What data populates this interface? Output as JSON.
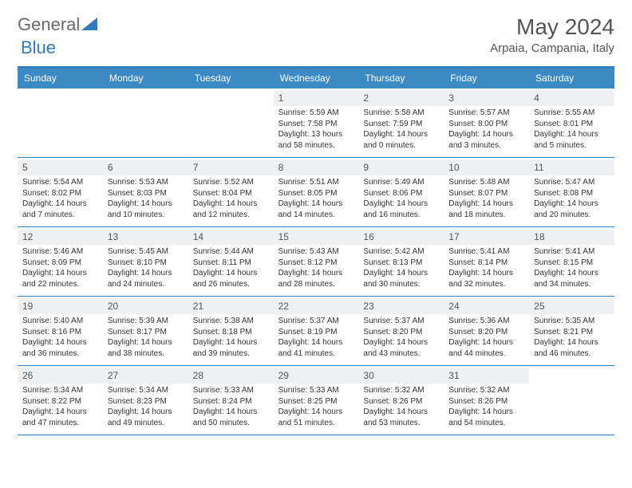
{
  "logo": {
    "text1": "General",
    "text2": "Blue"
  },
  "title": "May 2024",
  "location": "Arpaia, Campania, Italy",
  "weekdays": [
    "Sunday",
    "Monday",
    "Tuesday",
    "Wednesday",
    "Thursday",
    "Friday",
    "Saturday"
  ],
  "colors": {
    "header_bg": "#3b8ac4",
    "border": "#2f7bbf",
    "daynum_bg": "#eef0f1",
    "text": "#333333",
    "logo_gray": "#6a6a6a",
    "logo_blue": "#2f7bbf"
  },
  "weeks": [
    [
      {
        "empty": true
      },
      {
        "empty": true
      },
      {
        "empty": true
      },
      {
        "day": "1",
        "sunrise": "Sunrise: 5:59 AM",
        "sunset": "Sunset: 7:58 PM",
        "daylight1": "Daylight: 13 hours",
        "daylight2": "and 58 minutes."
      },
      {
        "day": "2",
        "sunrise": "Sunrise: 5:58 AM",
        "sunset": "Sunset: 7:59 PM",
        "daylight1": "Daylight: 14 hours",
        "daylight2": "and 0 minutes."
      },
      {
        "day": "3",
        "sunrise": "Sunrise: 5:57 AM",
        "sunset": "Sunset: 8:00 PM",
        "daylight1": "Daylight: 14 hours",
        "daylight2": "and 3 minutes."
      },
      {
        "day": "4",
        "sunrise": "Sunrise: 5:55 AM",
        "sunset": "Sunset: 8:01 PM",
        "daylight1": "Daylight: 14 hours",
        "daylight2": "and 5 minutes."
      }
    ],
    [
      {
        "day": "5",
        "sunrise": "Sunrise: 5:54 AM",
        "sunset": "Sunset: 8:02 PM",
        "daylight1": "Daylight: 14 hours",
        "daylight2": "and 7 minutes."
      },
      {
        "day": "6",
        "sunrise": "Sunrise: 5:53 AM",
        "sunset": "Sunset: 8:03 PM",
        "daylight1": "Daylight: 14 hours",
        "daylight2": "and 10 minutes."
      },
      {
        "day": "7",
        "sunrise": "Sunrise: 5:52 AM",
        "sunset": "Sunset: 8:04 PM",
        "daylight1": "Daylight: 14 hours",
        "daylight2": "and 12 minutes."
      },
      {
        "day": "8",
        "sunrise": "Sunrise: 5:51 AM",
        "sunset": "Sunset: 8:05 PM",
        "daylight1": "Daylight: 14 hours",
        "daylight2": "and 14 minutes."
      },
      {
        "day": "9",
        "sunrise": "Sunrise: 5:49 AM",
        "sunset": "Sunset: 8:06 PM",
        "daylight1": "Daylight: 14 hours",
        "daylight2": "and 16 minutes."
      },
      {
        "day": "10",
        "sunrise": "Sunrise: 5:48 AM",
        "sunset": "Sunset: 8:07 PM",
        "daylight1": "Daylight: 14 hours",
        "daylight2": "and 18 minutes."
      },
      {
        "day": "11",
        "sunrise": "Sunrise: 5:47 AM",
        "sunset": "Sunset: 8:08 PM",
        "daylight1": "Daylight: 14 hours",
        "daylight2": "and 20 minutes."
      }
    ],
    [
      {
        "day": "12",
        "sunrise": "Sunrise: 5:46 AM",
        "sunset": "Sunset: 8:09 PM",
        "daylight1": "Daylight: 14 hours",
        "daylight2": "and 22 minutes."
      },
      {
        "day": "13",
        "sunrise": "Sunrise: 5:45 AM",
        "sunset": "Sunset: 8:10 PM",
        "daylight1": "Daylight: 14 hours",
        "daylight2": "and 24 minutes."
      },
      {
        "day": "14",
        "sunrise": "Sunrise: 5:44 AM",
        "sunset": "Sunset: 8:11 PM",
        "daylight1": "Daylight: 14 hours",
        "daylight2": "and 26 minutes."
      },
      {
        "day": "15",
        "sunrise": "Sunrise: 5:43 AM",
        "sunset": "Sunset: 8:12 PM",
        "daylight1": "Daylight: 14 hours",
        "daylight2": "and 28 minutes."
      },
      {
        "day": "16",
        "sunrise": "Sunrise: 5:42 AM",
        "sunset": "Sunset: 8:13 PM",
        "daylight1": "Daylight: 14 hours",
        "daylight2": "and 30 minutes."
      },
      {
        "day": "17",
        "sunrise": "Sunrise: 5:41 AM",
        "sunset": "Sunset: 8:14 PM",
        "daylight1": "Daylight: 14 hours",
        "daylight2": "and 32 minutes."
      },
      {
        "day": "18",
        "sunrise": "Sunrise: 5:41 AM",
        "sunset": "Sunset: 8:15 PM",
        "daylight1": "Daylight: 14 hours",
        "daylight2": "and 34 minutes."
      }
    ],
    [
      {
        "day": "19",
        "sunrise": "Sunrise: 5:40 AM",
        "sunset": "Sunset: 8:16 PM",
        "daylight1": "Daylight: 14 hours",
        "daylight2": "and 36 minutes."
      },
      {
        "day": "20",
        "sunrise": "Sunrise: 5:39 AM",
        "sunset": "Sunset: 8:17 PM",
        "daylight1": "Daylight: 14 hours",
        "daylight2": "and 38 minutes."
      },
      {
        "day": "21",
        "sunrise": "Sunrise: 5:38 AM",
        "sunset": "Sunset: 8:18 PM",
        "daylight1": "Daylight: 14 hours",
        "daylight2": "and 39 minutes."
      },
      {
        "day": "22",
        "sunrise": "Sunrise: 5:37 AM",
        "sunset": "Sunset: 8:19 PM",
        "daylight1": "Daylight: 14 hours",
        "daylight2": "and 41 minutes."
      },
      {
        "day": "23",
        "sunrise": "Sunrise: 5:37 AM",
        "sunset": "Sunset: 8:20 PM",
        "daylight1": "Daylight: 14 hours",
        "daylight2": "and 43 minutes."
      },
      {
        "day": "24",
        "sunrise": "Sunrise: 5:36 AM",
        "sunset": "Sunset: 8:20 PM",
        "daylight1": "Daylight: 14 hours",
        "daylight2": "and 44 minutes."
      },
      {
        "day": "25",
        "sunrise": "Sunrise: 5:35 AM",
        "sunset": "Sunset: 8:21 PM",
        "daylight1": "Daylight: 14 hours",
        "daylight2": "and 46 minutes."
      }
    ],
    [
      {
        "day": "26",
        "sunrise": "Sunrise: 5:34 AM",
        "sunset": "Sunset: 8:22 PM",
        "daylight1": "Daylight: 14 hours",
        "daylight2": "and 47 minutes."
      },
      {
        "day": "27",
        "sunrise": "Sunrise: 5:34 AM",
        "sunset": "Sunset: 8:23 PM",
        "daylight1": "Daylight: 14 hours",
        "daylight2": "and 49 minutes."
      },
      {
        "day": "28",
        "sunrise": "Sunrise: 5:33 AM",
        "sunset": "Sunset: 8:24 PM",
        "daylight1": "Daylight: 14 hours",
        "daylight2": "and 50 minutes."
      },
      {
        "day": "29",
        "sunrise": "Sunrise: 5:33 AM",
        "sunset": "Sunset: 8:25 PM",
        "daylight1": "Daylight: 14 hours",
        "daylight2": "and 51 minutes."
      },
      {
        "day": "30",
        "sunrise": "Sunrise: 5:32 AM",
        "sunset": "Sunset: 8:26 PM",
        "daylight1": "Daylight: 14 hours",
        "daylight2": "and 53 minutes."
      },
      {
        "day": "31",
        "sunrise": "Sunrise: 5:32 AM",
        "sunset": "Sunset: 8:26 PM",
        "daylight1": "Daylight: 14 hours",
        "daylight2": "and 54 minutes."
      },
      {
        "empty": true
      }
    ]
  ]
}
